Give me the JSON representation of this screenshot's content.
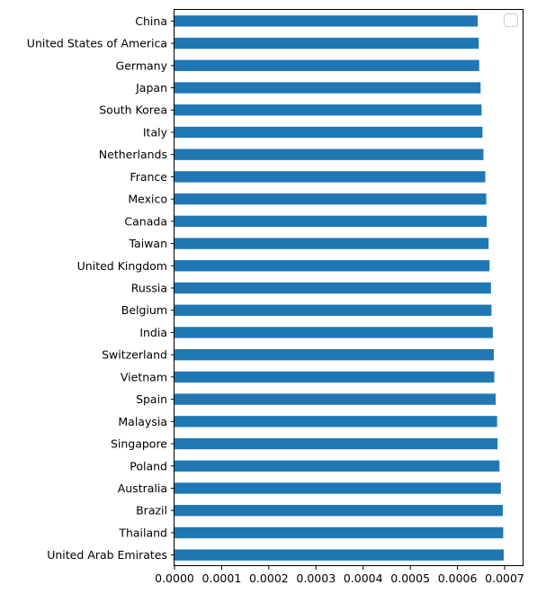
{
  "chart_data": {
    "type": "bar",
    "orientation": "horizontal",
    "title": "",
    "xlabel": "",
    "ylabel": "",
    "xlim": [
      0,
      0.00074
    ],
    "xticks": [
      "0.0000",
      "0.0001",
      "0.0002",
      "0.0003",
      "0.0004",
      "0.0005",
      "0.0006",
      "0.0007"
    ],
    "grid": false,
    "legend": {
      "visible": true,
      "placement": "top-right",
      "entries": []
    },
    "bar_color": "#1f77b4",
    "categories": [
      "China",
      "United States of America",
      "Germany",
      "Japan",
      "South Korea",
      "Italy",
      "Netherlands",
      "France",
      "Mexico",
      "Canada",
      "Taiwan",
      "United Kingdom",
      "Russia",
      "Belgium",
      "India",
      "Switzerland",
      "Vietnam",
      "Spain",
      "Malaysia",
      "Singapore",
      "Poland",
      "Australia",
      "Brazil",
      "Thailand",
      "United Arab Emirates"
    ],
    "values": [
      0.000643,
      0.000645,
      0.000646,
      0.000649,
      0.000651,
      0.000653,
      0.000655,
      0.000659,
      0.000661,
      0.000662,
      0.000666,
      0.000668,
      0.000671,
      0.000672,
      0.000675,
      0.000677,
      0.000678,
      0.000681,
      0.000684,
      0.000685,
      0.000689,
      0.000692,
      0.000696,
      0.000697,
      0.000698
    ]
  }
}
